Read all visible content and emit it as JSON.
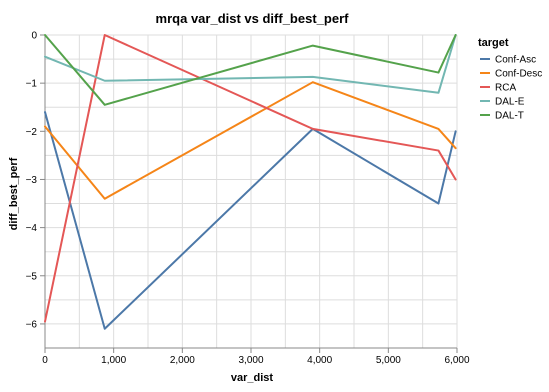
{
  "chart_data": {
    "type": "line",
    "title": "mrqa var_dist vs diff_best_perf",
    "xlabel": "var_dist",
    "ylabel": "diff_best_perf",
    "xlim": [
      0,
      6000
    ],
    "ylim": [
      -6.5,
      0
    ],
    "x_ticks": [
      {
        "value": 0,
        "label": "0"
      },
      {
        "value": 1000,
        "label": "1,000"
      },
      {
        "value": 2000,
        "label": "2,000"
      },
      {
        "value": 3000,
        "label": "3,000"
      },
      {
        "value": 4000,
        "label": "4,000"
      },
      {
        "value": 5000,
        "label": "5,000"
      },
      {
        "value": 6000,
        "label": "6,000"
      }
    ],
    "y_ticks": [
      {
        "value": 0,
        "label": "0"
      },
      {
        "value": -1,
        "label": "−1"
      },
      {
        "value": -2,
        "label": "−2"
      },
      {
        "value": -3,
        "label": "−3"
      },
      {
        "value": -4,
        "label": "−4"
      },
      {
        "value": -5,
        "label": "−5"
      },
      {
        "value": -6,
        "label": "−6"
      }
    ],
    "grid": true,
    "legend": {
      "title": "target",
      "position": "right"
    },
    "series": [
      {
        "name": "Conf-Asc",
        "color": "#4c78a8",
        "points": [
          [
            0,
            -1.6
          ],
          [
            870,
            -6.1
          ],
          [
            3900,
            -1.95
          ],
          [
            5730,
            -3.5
          ],
          [
            5980,
            -2.0
          ]
        ]
      },
      {
        "name": "Conf-Desc",
        "color": "#f58518",
        "points": [
          [
            0,
            -1.9
          ],
          [
            870,
            -3.4
          ],
          [
            3900,
            -0.98
          ],
          [
            5730,
            -1.95
          ],
          [
            5980,
            -2.35
          ]
        ]
      },
      {
        "name": "RCA",
        "color": "#e45756",
        "points": [
          [
            0,
            -5.95
          ],
          [
            870,
            0.0
          ],
          [
            3900,
            -1.95
          ],
          [
            5730,
            -2.4
          ],
          [
            5980,
            -3.0
          ]
        ]
      },
      {
        "name": "DAL-E",
        "color": "#72b7b2",
        "points": [
          [
            0,
            -0.45
          ],
          [
            870,
            -0.95
          ],
          [
            3900,
            -0.87
          ],
          [
            5730,
            -1.2
          ],
          [
            5980,
            0.0
          ]
        ]
      },
      {
        "name": "DAL-T",
        "color": "#54a24b",
        "points": [
          [
            0,
            0.0
          ],
          [
            870,
            -1.45
          ],
          [
            3900,
            -0.22
          ],
          [
            5730,
            -0.78
          ],
          [
            5980,
            0.0
          ]
        ]
      }
    ]
  }
}
